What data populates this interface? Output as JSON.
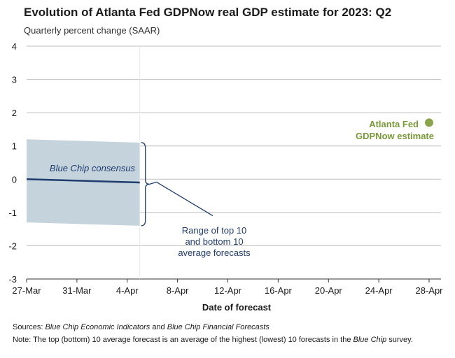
{
  "header": {
    "title": "Evolution of Atlanta Fed GDPNow real GDP estimate for 2023: Q2",
    "subtitle": "Quarterly percent change (SAAR)"
  },
  "chart_data": {
    "type": "line",
    "title": "Evolution of Atlanta Fed GDPNow real GDP estimate for 2023: Q2",
    "subtitle": "Quarterly percent change (SAAR)",
    "xlabel": "Date of forecast",
    "ylabel": "",
    "x_ticks": [
      "27-Mar",
      "31-Mar",
      "4-Apr",
      "8-Apr",
      "12-Apr",
      "16-Apr",
      "20-Apr",
      "24-Apr",
      "28-Apr"
    ],
    "ylim": [
      -3,
      4
    ],
    "y_ticks": [
      "4",
      "3",
      "2",
      "1",
      "0",
      "-1",
      "-2",
      "-3"
    ],
    "grid": true,
    "colors": {
      "consensus_line": "#1f3c6e",
      "range_band": "#c5d3dc",
      "gdpnow_point": "#8aa44b",
      "gdpnow_label": "#7a9a3a",
      "annotation_text": "#1f3c6e",
      "grid": "#bfbfbf"
    },
    "series": [
      {
        "name": "Blue Chip consensus",
        "x": [
          "27-Mar",
          "5-Apr"
        ],
        "values": [
          0.0,
          -0.1
        ]
      },
      {
        "name": "Atlanta Fed GDPNow estimate",
        "x": [
          "28-Apr"
        ],
        "values": [
          1.7
        ]
      }
    ],
    "band": {
      "name": "Range of top 10 and bottom 10 average forecasts",
      "x": [
        "27-Mar",
        "5-Apr"
      ],
      "upper": [
        1.2,
        1.1
      ],
      "lower": [
        -1.3,
        -1.4
      ]
    },
    "annotations": {
      "consensus_label": "Blue Chip consensus",
      "gdpnow_label_line1": "Atlanta Fed",
      "gdpnow_label_line2": "GDPNow estimate",
      "range_label_line1": "Range of top 10",
      "range_label_line2": "and bottom 10",
      "range_label_line3": "average forecasts"
    }
  },
  "footer": {
    "sources_prefix": "Sources: ",
    "sources_italic_1": "Blue Chip Economic Indicators",
    "sources_mid": " and ",
    "sources_italic_2": "Blue Chip Financial Forecasts",
    "note_prefix": "Note: The top (bottom) 10 average forecast is an average of the highest (lowest) 10 forecasts in the ",
    "note_italic": "Blue Chip",
    "note_suffix": " survey."
  }
}
